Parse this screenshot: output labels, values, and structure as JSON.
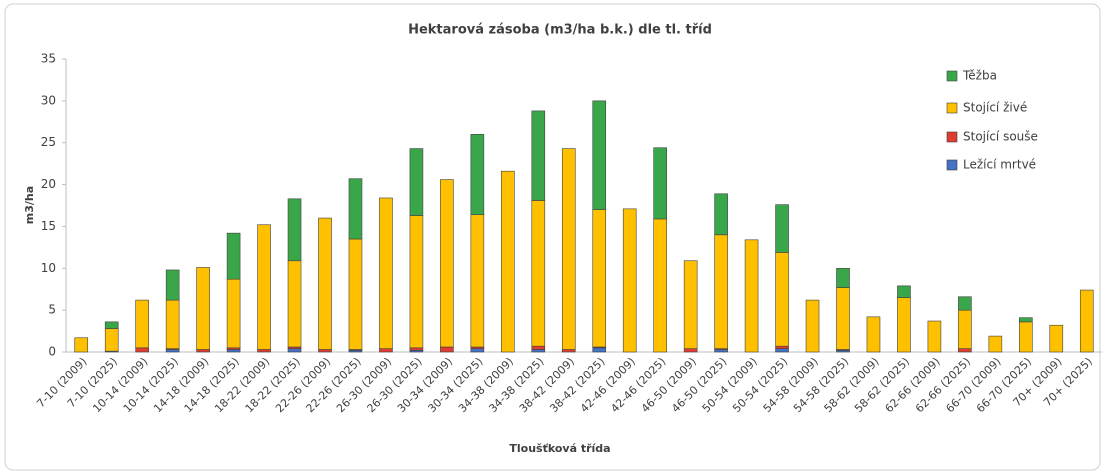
{
  "chart_data": {
    "type": "stacked_bar",
    "title": "Hektarová zásoba (m3/ha b.k.) dle tl. tříd",
    "x_label": "Tloušťková třída",
    "y_label": "m3/ha",
    "categories": [
      "7-10 (2009)",
      "7-10 (2025)",
      "10-14 (2009)",
      "10-14 (2025)",
      "14-18 (2009)",
      "14-18 (2025)",
      "18-22 (2009)",
      "18-22 (2025)",
      "22-26 (2009)",
      "22-26 (2025)",
      "26-30 (2009)",
      "26-30 (2025)",
      "30-34 (2009)",
      "30-34 (2025)",
      "34-38 (2009)",
      "34-38 (2025)",
      "38-42 (2009)",
      "38-42 (2025)",
      "42-46 (2009)",
      "42-46 (2025)",
      "46-50 (2009)",
      "46-50 (2025)",
      "50-54 (2009)",
      "50-54 (2025)",
      "54-58 (2009)",
      "54-58 (2025)",
      "58-62 (2009)",
      "58-62 (2025)",
      "62-66 (2009)",
      "62-66 (2025)",
      "66-70 (2009)",
      "66-70 (2025)",
      "70+ (2009)",
      "70+ (2025)"
    ],
    "series": [
      {
        "name": "Ležící mrtvé",
        "color": "#4472c4",
        "values": [
          0,
          0.1,
          0,
          0.3,
          0,
          0.3,
          0,
          0.4,
          0,
          0.2,
          0,
          0.2,
          0,
          0.4,
          0,
          0.3,
          0,
          0.5,
          0,
          0,
          0,
          0.3,
          0,
          0.4,
          0,
          0.2,
          0,
          0,
          0,
          0,
          0,
          0,
          0,
          0
        ]
      },
      {
        "name": "Stojící souše",
        "color": "#e03c31",
        "values": [
          0,
          0,
          0.5,
          0.1,
          0.3,
          0.2,
          0.3,
          0.2,
          0.3,
          0.1,
          0.4,
          0.3,
          0.6,
          0.2,
          0,
          0.4,
          0.3,
          0.1,
          0,
          0,
          0.4,
          0.1,
          0,
          0.3,
          0,
          0.1,
          0,
          0,
          0,
          0.4,
          0,
          0,
          0,
          0
        ]
      },
      {
        "name": "Stojící živé",
        "color": "#ffc000",
        "values": [
          1.7,
          2.7,
          5.7,
          5.8,
          9.8,
          8.2,
          14.9,
          10.3,
          15.7,
          13.2,
          18.0,
          15.8,
          20.0,
          15.8,
          21.6,
          17.4,
          24.0,
          16.4,
          17.1,
          15.9,
          10.5,
          13.6,
          13.4,
          11.2,
          6.2,
          7.4,
          4.2,
          6.5,
          3.7,
          4.6,
          1.9,
          3.6,
          3.2,
          7.4
        ]
      },
      {
        "name": "Těžba",
        "color": "#3aa64a",
        "values": [
          0,
          0.8,
          0,
          3.6,
          0,
          5.5,
          0,
          7.4,
          0,
          7.2,
          0,
          8.0,
          0,
          9.6,
          0,
          10.7,
          0,
          13.0,
          0,
          8.5,
          0,
          4.9,
          0,
          5.7,
          0,
          2.3,
          0,
          1.4,
          0,
          1.6,
          0,
          0.5,
          0,
          0
        ]
      }
    ],
    "ylim": [
      0,
      35
    ],
    "yticks": [
      0,
      5,
      10,
      15,
      20,
      25,
      30,
      35
    ],
    "grid": false,
    "legend": "right"
  }
}
